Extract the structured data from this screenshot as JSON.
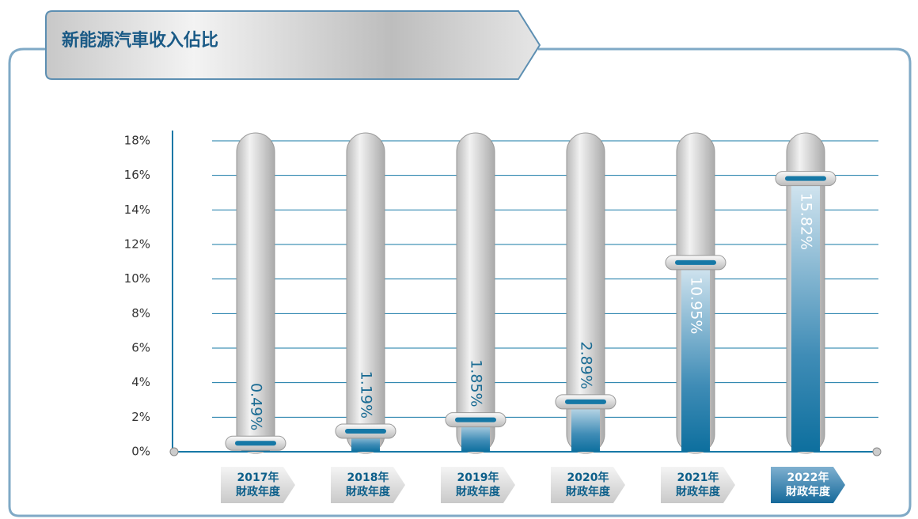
{
  "chart_data": {
    "type": "bar",
    "title": "新能源汽車收入佔比",
    "categories": [
      "2017年\n財政年度",
      "2018年\n財政年度",
      "2019年\n財政年度",
      "2020年\n財政年度",
      "2021年\n財政年度",
      "2022年\n財政年度"
    ],
    "values": [
      0.49,
      1.19,
      1.85,
      2.89,
      10.95,
      15.82
    ],
    "value_labels": [
      "0.49%",
      "1.19%",
      "1.85%",
      "2.89%",
      "10.95%",
      "15.82%"
    ],
    "color": "#1678a6",
    "ylim": [
      0,
      18
    ],
    "yticks": [
      {
        "value": 0,
        "label": "0%"
      },
      {
        "value": 2,
        "label": "2%"
      },
      {
        "value": 4,
        "label": "4%"
      },
      {
        "value": 6,
        "label": "6%"
      },
      {
        "value": 8,
        "label": "8%"
      },
      {
        "value": 10,
        "label": "10%"
      },
      {
        "value": 12,
        "label": "12%"
      },
      {
        "value": 14,
        "label": "14%"
      },
      {
        "value": 16,
        "label": "16%"
      },
      {
        "value": 18,
        "label": "18%"
      }
    ],
    "grid": true
  }
}
